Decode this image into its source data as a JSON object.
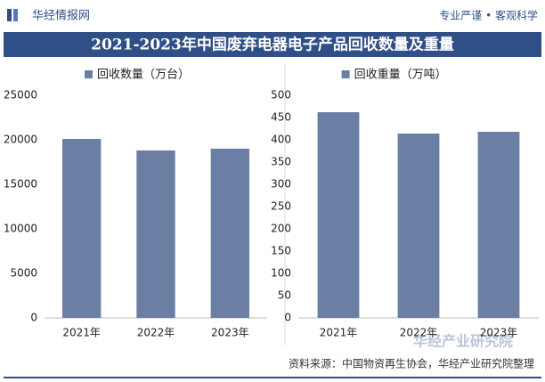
{
  "header": {
    "brand": "华经情报网",
    "slogan": "专业严谨 • 客观科学",
    "title": "2021-2023年中国废弃电器电子产品回收数量及重量",
    "source": "资料来源：中国物资再生协会，华经产业研究院整理",
    "logo": "华经产业研究院"
  },
  "chart_data": [
    {
      "type": "bar",
      "categories": [
        "2021年",
        "2022年",
        "2023年"
      ],
      "series": [
        {
          "name": "回收数量（万台）",
          "color": "#6b7ea3",
          "values": [
            20100,
            18800,
            19000
          ]
        }
      ],
      "ylim": [
        0,
        25000
      ],
      "yticks": [
        0,
        5000,
        10000,
        15000,
        20000,
        25000
      ],
      "grid": false,
      "legend": "top"
    },
    {
      "type": "bar",
      "categories": [
        "2021年",
        "2022年",
        "2023年"
      ],
      "series": [
        {
          "name": "回收重量（万吨）",
          "color": "#6b7ea3",
          "values": [
            462,
            414,
            418
          ]
        }
      ],
      "ylim": [
        0,
        500
      ],
      "yticks": [
        0,
        50,
        100,
        150,
        200,
        250,
        300,
        350,
        400,
        450,
        500
      ],
      "grid": false,
      "legend": "top"
    }
  ]
}
